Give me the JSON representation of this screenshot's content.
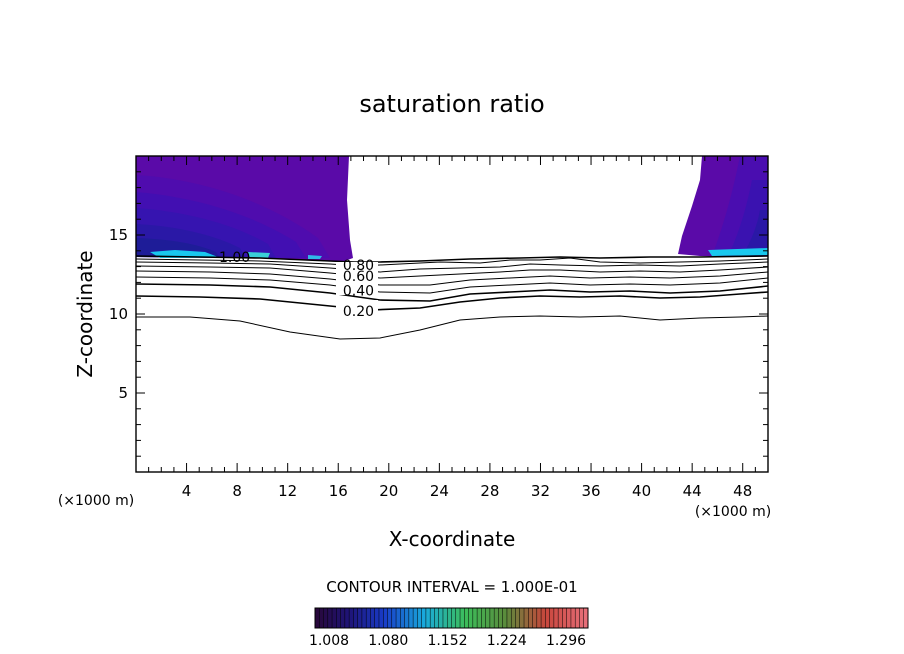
{
  "chart_data": {
    "type": "contour",
    "title": "saturation ratio",
    "xlabel": "X-coordinate",
    "ylabel": "Z-coordinate",
    "x_unit": "(×1000 m)",
    "z_unit": "(×1000 m)",
    "xlim": [
      0,
      50
    ],
    "ylim": [
      0,
      20
    ],
    "x_ticks": [
      4,
      8,
      12,
      16,
      20,
      24,
      28,
      32,
      36,
      40,
      44,
      48
    ],
    "y_ticks": [
      5,
      10,
      15
    ],
    "contour_interval_text": "CONTOUR INTERVAL = 1.000E-01",
    "contour_labels": [
      {
        "text": "1.00",
        "x": 7.8,
        "z": 13.6
      },
      {
        "text": "0.80",
        "x": 17.6,
        "z": 13.1
      },
      {
        "text": "0.60",
        "x": 17.6,
        "z": 12.4
      },
      {
        "text": "0.40",
        "x": 17.6,
        "z": 11.5
      },
      {
        "text": "0.20",
        "x": 17.6,
        "z": 10.2
      }
    ],
    "colorbar_ticks": [
      "1.008",
      "1.080",
      "1.152",
      "1.224",
      "1.296"
    ],
    "colors": {
      "supersat_dark": "#5a0aa8",
      "supersat_mid": "#3c0fb4",
      "supersat_deep": "#1c1c96",
      "supersat_cyan": "#19c8ee",
      "background": "#ffffff"
    }
  }
}
